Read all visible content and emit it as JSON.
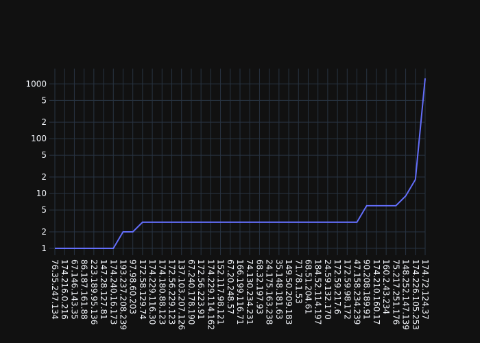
{
  "chart_data": {
    "type": "line",
    "categories": [
      "76.35.247.134",
      "174.216.0.216",
      "67.146.143.35",
      "86.187.161.88",
      "223.189.95.136",
      "147.28.127.81",
      "174.240.16.173",
      "193.237.208.239",
      "97.98.60.203",
      "172.58.129.74",
      "174.229.116.30",
      "174.180.88.123",
      "172.56.229.123",
      "137.103.207.126",
      "67.240.178.190",
      "172.56.223.91",
      "174.229.114.162",
      "152.117.98.121",
      "67.20.248.57",
      "166.199.116.71",
      "74.130.234.231",
      "68.32.197.93",
      "24.175.163.238",
      "35.148.181.63",
      "149.50.209.183",
      "71.78.1.53",
      "68.51.204.61",
      "184.52.114.197",
      "24.59.132.170",
      "172.59.217.6",
      "172.59.98.172",
      "47.158.234.239",
      "90.208.189.91",
      "174.210.160.17",
      "160.2.43.234",
      "75.217.251.176",
      "148.252.147.139",
      "174.226.105.253",
      "174.72.124.37"
    ],
    "series": [
      {
        "color": "#636efa",
        "values": [
          1,
          1,
          1,
          1,
          1,
          1,
          1,
          2,
          2,
          3,
          3,
          3,
          3,
          3,
          3,
          3,
          3,
          3,
          3,
          3,
          3,
          3,
          3,
          3,
          3,
          3,
          3,
          3,
          3,
          3,
          3,
          3,
          6,
          6,
          6,
          6,
          9,
          18,
          1260
        ]
      }
    ],
    "log_y": true,
    "ylim": [
      0.75,
      1900
    ],
    "yticks": [
      1,
      2,
      5,
      10,
      {
        "value": 20,
        "label": "2"
      },
      {
        "value": 50,
        "label": "5"
      },
      100,
      {
        "value": 200,
        "label": "2"
      },
      {
        "value": 500,
        "label": "5"
      },
      1000
    ],
    "grid": true
  }
}
